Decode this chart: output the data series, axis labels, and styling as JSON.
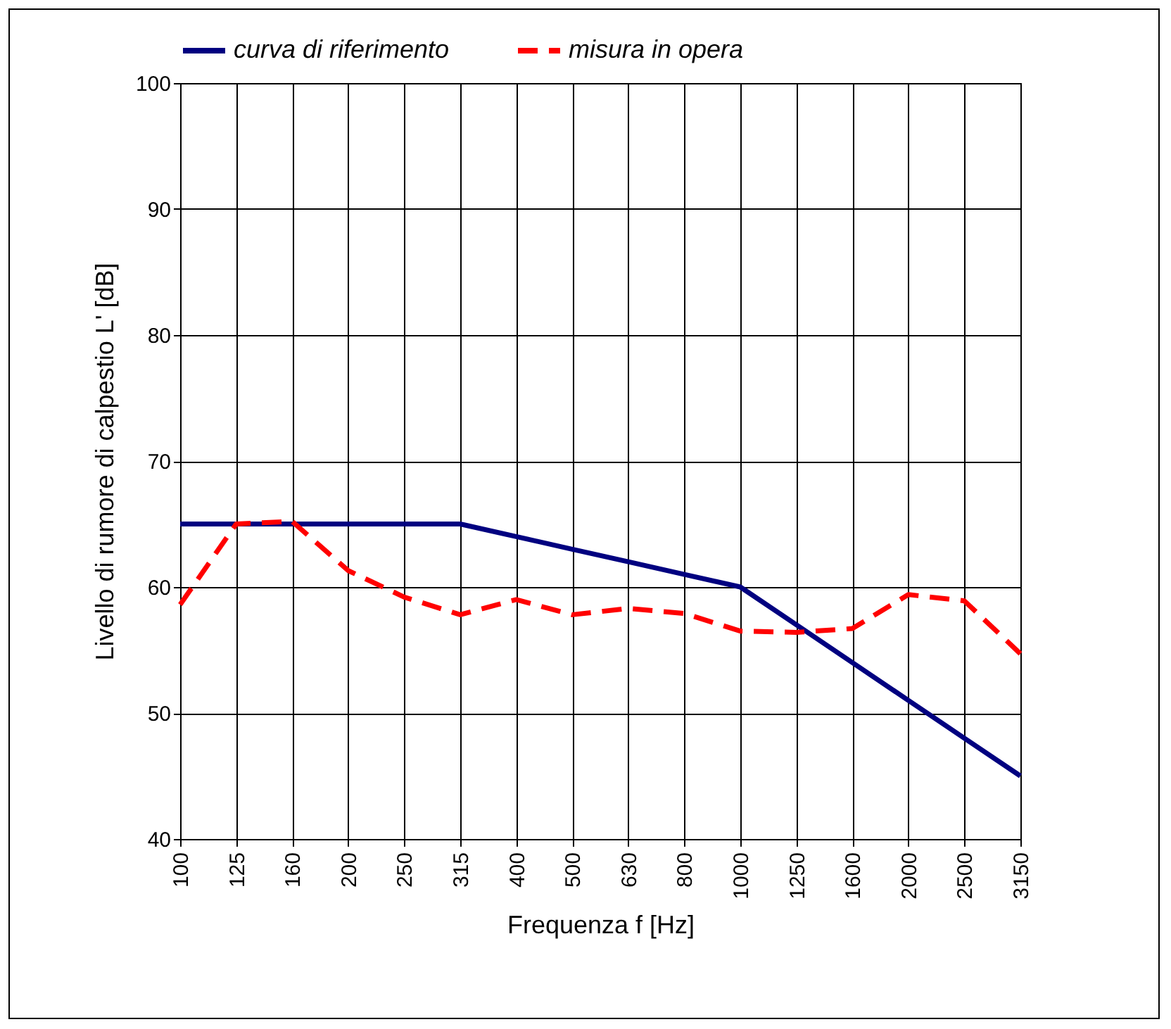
{
  "chart_data": {
    "type": "line",
    "xlabel": "Frequenza f [Hz]",
    "ylabel": "Livello di rumore di calpestio L' [dB]",
    "categories": [
      "100",
      "125",
      "160",
      "200",
      "250",
      "315",
      "400",
      "500",
      "630",
      "800",
      "1000",
      "1250",
      "1600",
      "2000",
      "2500",
      "3150"
    ],
    "series": [
      {
        "name": "curva di riferimento",
        "color": "#000080",
        "line_style": "solid",
        "values": [
          65,
          65,
          65,
          65,
          65,
          65,
          64,
          63,
          62,
          61,
          60,
          57,
          54,
          51,
          48,
          45
        ]
      },
      {
        "name": "misura in opera",
        "color": "#ff0000",
        "line_style": "dashed",
        "values": [
          58.6,
          65,
          65.2,
          61.3,
          59.2,
          57.8,
          59,
          57.8,
          58.3,
          57.9,
          56.5,
          56.4,
          56.7,
          59.4,
          58.9,
          54.7
        ]
      }
    ],
    "ylim": [
      40,
      100
    ],
    "yticks": [
      40,
      50,
      60,
      70,
      80,
      90,
      100
    ],
    "grid": true,
    "legend": "top",
    "marker": "none"
  }
}
